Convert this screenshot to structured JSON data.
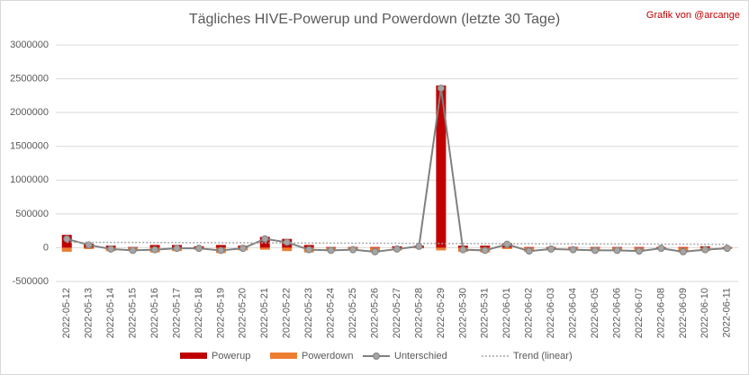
{
  "chart_data": {
    "type": "bar",
    "title": "Tägliches HIVE-Powerup und Powerdown (letzte 30 Tage)",
    "credit": "Grafik von @arcange",
    "categories": [
      "2022-05-12",
      "2022-05-13",
      "2022-05-14",
      "2022-05-15",
      "2022-05-16",
      "2022-05-17",
      "2022-05-18",
      "2022-05-19",
      "2022-05-20",
      "2022-05-21",
      "2022-05-22",
      "2022-05-23",
      "2022-05-24",
      "2022-05-25",
      "2022-05-26",
      "2022-05-27",
      "2022-05-28",
      "2022-05-29",
      "2022-05-30",
      "2022-05-31",
      "2022-06-01",
      "2022-06-02",
      "2022-06-03",
      "2022-06-04",
      "2022-06-05",
      "2022-06-06",
      "2022-06-07",
      "2022-06-08",
      "2022-06-09",
      "2022-06-10",
      "2022-06-11"
    ],
    "series": [
      {
        "name": "Powerup",
        "kind": "bar",
        "color": "#c00000",
        "values": [
          190000,
          60000,
          30000,
          10000,
          40000,
          40000,
          20000,
          40000,
          30000,
          160000,
          130000,
          40000,
          10000,
          10000,
          10000,
          20000,
          30000,
          2400000,
          30000,
          30000,
          70000,
          10000,
          10000,
          10000,
          10000,
          10000,
          10000,
          10000,
          10000,
          20000,
          10000
        ]
      },
      {
        "name": "Powerdown",
        "kind": "bar",
        "color": "#ed7d31",
        "values": [
          -60000,
          -20000,
          -50000,
          -50000,
          -70000,
          -50000,
          -30000,
          -80000,
          -40000,
          -30000,
          -50000,
          -70000,
          -50000,
          -40000,
          -70000,
          -40000,
          -10000,
          -40000,
          -60000,
          -70000,
          -20000,
          -60000,
          -30000,
          -40000,
          -50000,
          -50000,
          -60000,
          -20000,
          -70000,
          -50000,
          -20000
        ]
      },
      {
        "name": "Unterschied",
        "kind": "line",
        "color": "#808080",
        "values": [
          130000,
          40000,
          -20000,
          -40000,
          -30000,
          -10000,
          -10000,
          -40000,
          -10000,
          130000,
          80000,
          -30000,
          -40000,
          -30000,
          -60000,
          -20000,
          20000,
          2360000,
          -30000,
          -40000,
          50000,
          -50000,
          -20000,
          -30000,
          -40000,
          -40000,
          -50000,
          -10000,
          -60000,
          -30000,
          -10000
        ]
      },
      {
        "name": "Trend (linear)",
        "kind": "trend",
        "color": "#a6a6a6",
        "values": [
          80000,
          79000,
          78000,
          77000,
          76000,
          75000,
          74000,
          73000,
          72000,
          71000,
          70000,
          69000,
          68000,
          67000,
          66000,
          65000,
          64000,
          63000,
          62000,
          61000,
          60000,
          59000,
          58000,
          57000,
          56000,
          55000,
          54000,
          53000,
          52000,
          51000,
          50000
        ]
      }
    ],
    "ylim": [
      -500000,
      3000000
    ],
    "yticks": [
      -500000,
      0,
      500000,
      1000000,
      1500000,
      2000000,
      2500000,
      3000000
    ],
    "grid": true,
    "legend": "bottom"
  }
}
